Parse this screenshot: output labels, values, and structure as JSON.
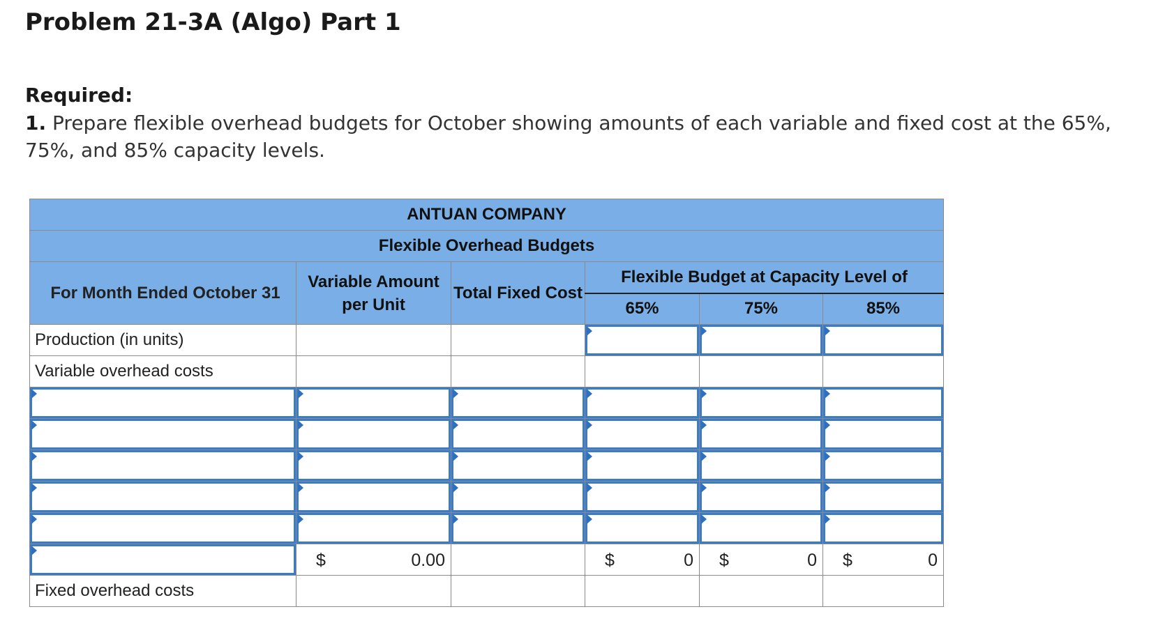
{
  "problem_title": "Problem 21-3A (Algo) Part 1",
  "required_label": "Required:",
  "required_number": "1.",
  "required_text": "Prepare flexible overhead budgets for October showing amounts of each variable and fixed cost at the 65%, 75%, and 85% capacity levels.",
  "table": {
    "company": "ANTUAN COMPANY",
    "title": "Flexible Overhead Budgets",
    "period": "For Month Ended October 31",
    "col_variable": "Variable Amount per Unit",
    "col_fixed": "Total Fixed Cost",
    "col_flex": "Flexible Budget at Capacity Level of",
    "levels": [
      "65%",
      "75%",
      "85%"
    ],
    "row_production": "Production (in units)",
    "row_variable": "Variable overhead costs",
    "row_fixed": "Fixed overhead costs",
    "total_row": {
      "dollar": "$",
      "variable_total": "0.00",
      "level_65": "0",
      "level_75": "0",
      "level_85": "0"
    }
  }
}
